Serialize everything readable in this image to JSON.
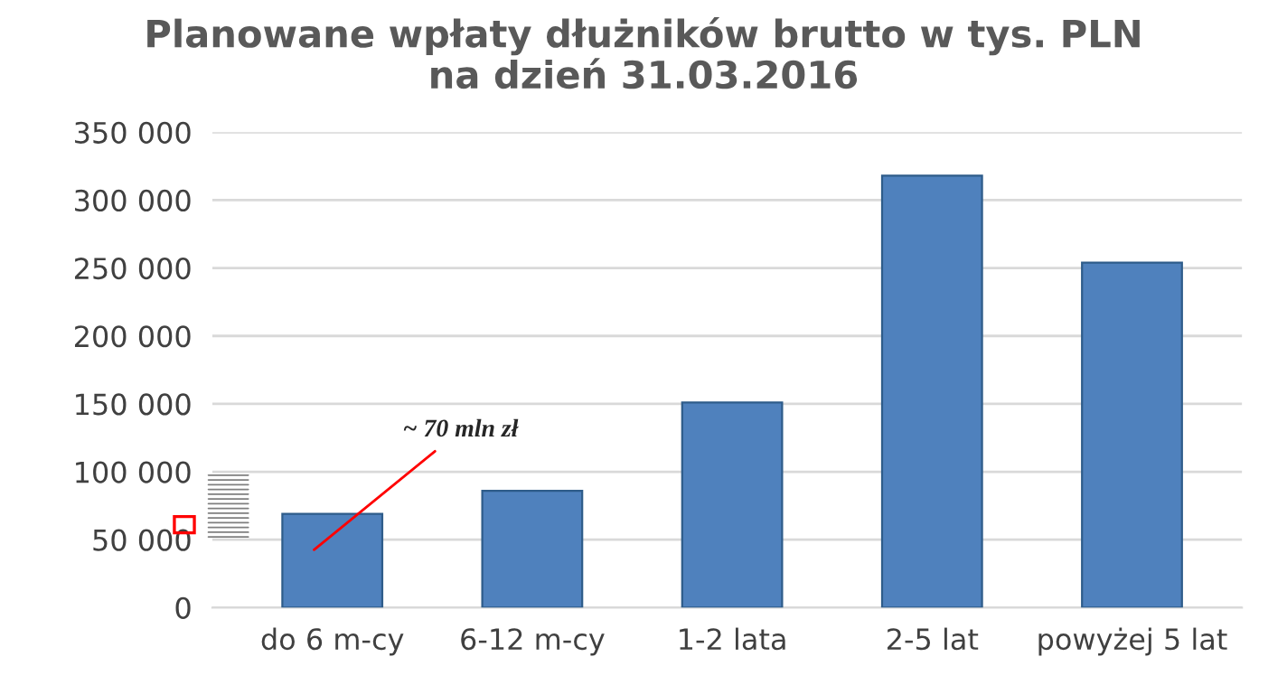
{
  "chart_data": {
    "type": "bar",
    "title": "Planowane wpłaty dłużników brutto w tys. PLN\nna dzień 31.03.2016",
    "categories": [
      "do 6 m-cy",
      "6-12 m-cy",
      "1-2 lata",
      "2-5 lat",
      "powyżej 5 lat"
    ],
    "values": [
      69000,
      86000,
      151000,
      318000,
      254000
    ],
    "color": "#4f81bd",
    "ylim": [
      0,
      350000
    ],
    "yticks": [
      {
        "value": 0,
        "label": "0"
      },
      {
        "value": 50000,
        "label": "50 000"
      },
      {
        "value": 100000,
        "label": "100 000"
      },
      {
        "value": 150000,
        "label": "150 000"
      },
      {
        "value": 200000,
        "label": "200 000"
      },
      {
        "value": 250000,
        "label": "250 000"
      },
      {
        "value": 300000,
        "label": "300 000"
      },
      {
        "value": 350000,
        "label": "350 000"
      }
    ],
    "grid": "y",
    "annotations": [
      "~ 70 mln zł"
    ]
  }
}
